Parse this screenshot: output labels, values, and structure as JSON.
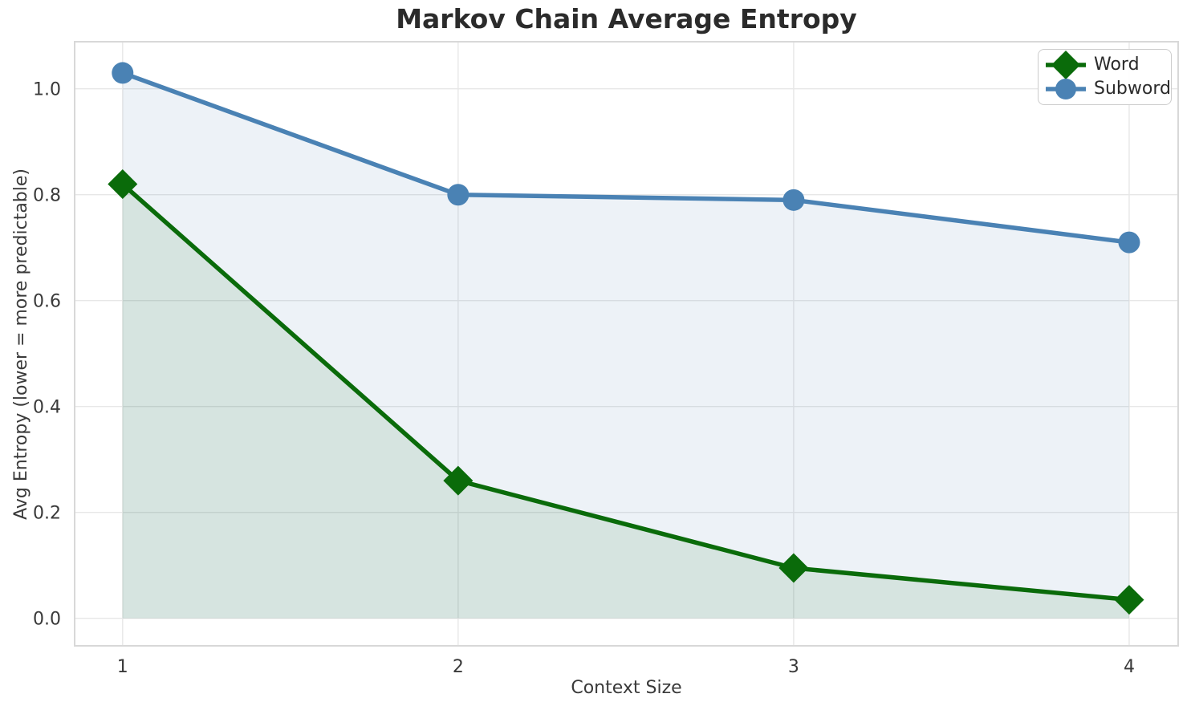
{
  "chart_data": {
    "type": "line",
    "title": "Markov Chain Average Entropy",
    "xlabel": "Context Size",
    "ylabel": "Avg Entropy (lower = more predictable)",
    "x": [
      1,
      2,
      3,
      4
    ],
    "series": [
      {
        "name": "Word",
        "values": [
          0.82,
          0.26,
          0.095,
          0.035
        ],
        "color": "#0a6b0a",
        "marker": "diamond",
        "marker_size": 18.5,
        "fill_to_zero": true
      },
      {
        "name": "Subword",
        "values": [
          1.03,
          0.8,
          0.79,
          0.71
        ],
        "color": "#4a82b4",
        "marker": "circle",
        "marker_size": 13.5,
        "fill_to_zero": true
      }
    ],
    "line_width": 5.5,
    "fill_alpha": 0.1,
    "fill_baseline": 0,
    "xlim": [
      0.857,
      4.146
    ],
    "ylim": [
      -0.052,
      1.089
    ],
    "xticks": [
      {
        "v": 1,
        "label": "1"
      },
      {
        "v": 2,
        "label": "2"
      },
      {
        "v": 3,
        "label": "3"
      },
      {
        "v": 4,
        "label": "4"
      }
    ],
    "yticks": [
      {
        "v": 0.0,
        "label": "0.0"
      },
      {
        "v": 0.2,
        "label": "0.2"
      },
      {
        "v": 0.4,
        "label": "0.4"
      },
      {
        "v": 0.6,
        "label": "0.6"
      },
      {
        "v": 0.8,
        "label": "0.8"
      },
      {
        "v": 1.0,
        "label": "1.0"
      }
    ],
    "grid": true,
    "grid_color": "#e7e7e7",
    "spine_color": "#d8d8d8",
    "tick_text_color": "#3a3a3a",
    "title_color": "#2b2b2b",
    "legend_position": "upper right",
    "legend_entries": [
      "Word",
      "Subword"
    ]
  }
}
